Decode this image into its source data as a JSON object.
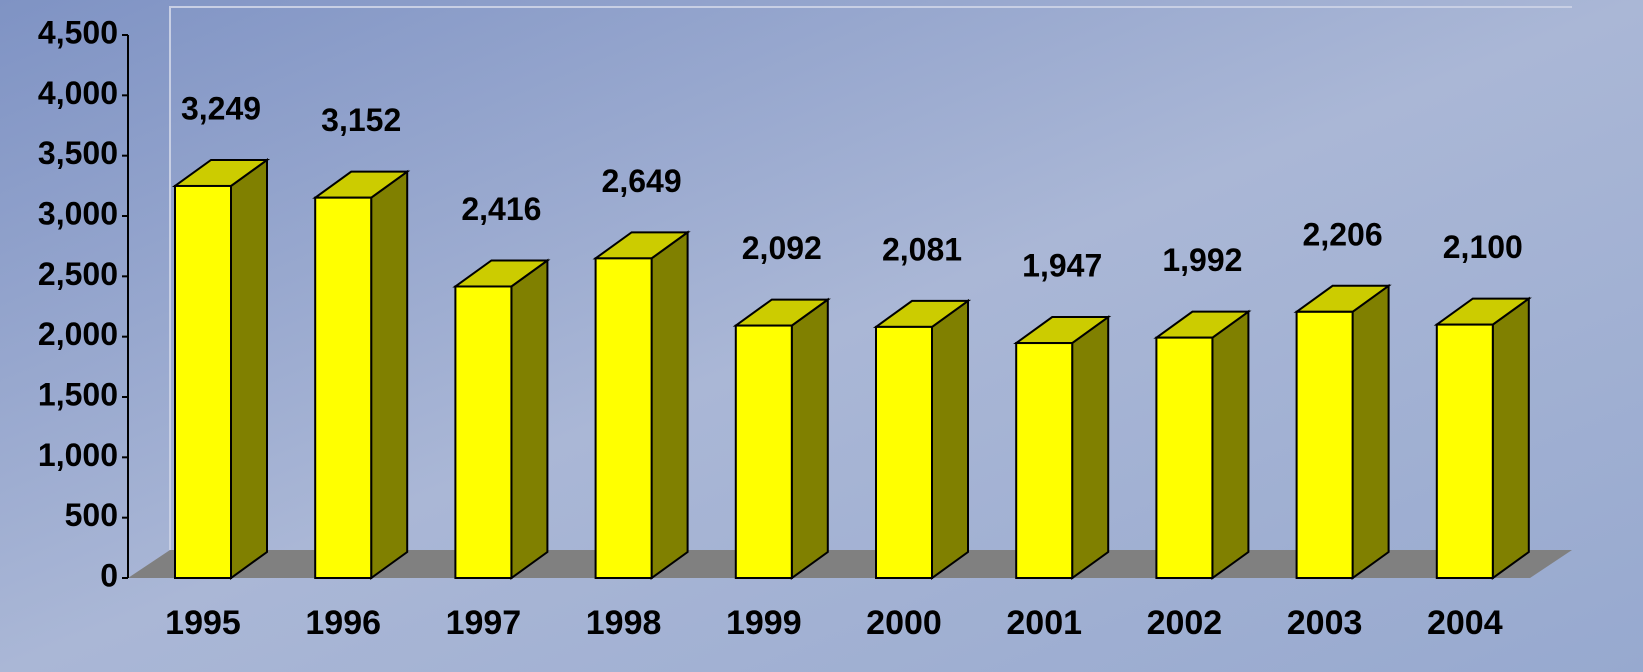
{
  "chart_data": {
    "type": "bar3d",
    "categories": [
      "1995",
      "1996",
      "1997",
      "1998",
      "1999",
      "2000",
      "2001",
      "2002",
      "2003",
      "2004"
    ],
    "values": [
      3249,
      3152,
      2416,
      2649,
      2092,
      2081,
      1947,
      1992,
      2206,
      2100
    ],
    "value_labels": [
      "3,249",
      "3,152",
      "2,416",
      "2,649",
      "2,092",
      "2,081",
      "1,947",
      "1,992",
      "2,206",
      "2,100"
    ],
    "color": "#ffff00",
    "ylim": [
      0,
      4500
    ],
    "yticks": [
      0,
      500,
      {
        "value": 1000,
        "label": "1,000"
      },
      {
        "value": 1500,
        "label": "1,500"
      },
      {
        "value": 2000,
        "label": "2,000"
      },
      {
        "value": 2500,
        "label": "2,500"
      },
      {
        "value": 3000,
        "label": "3,000"
      },
      {
        "value": 3500,
        "label": "3,500"
      },
      {
        "value": 4000,
        "label": "4,000"
      },
      {
        "value": 4500,
        "label": "4,500"
      }
    ]
  }
}
